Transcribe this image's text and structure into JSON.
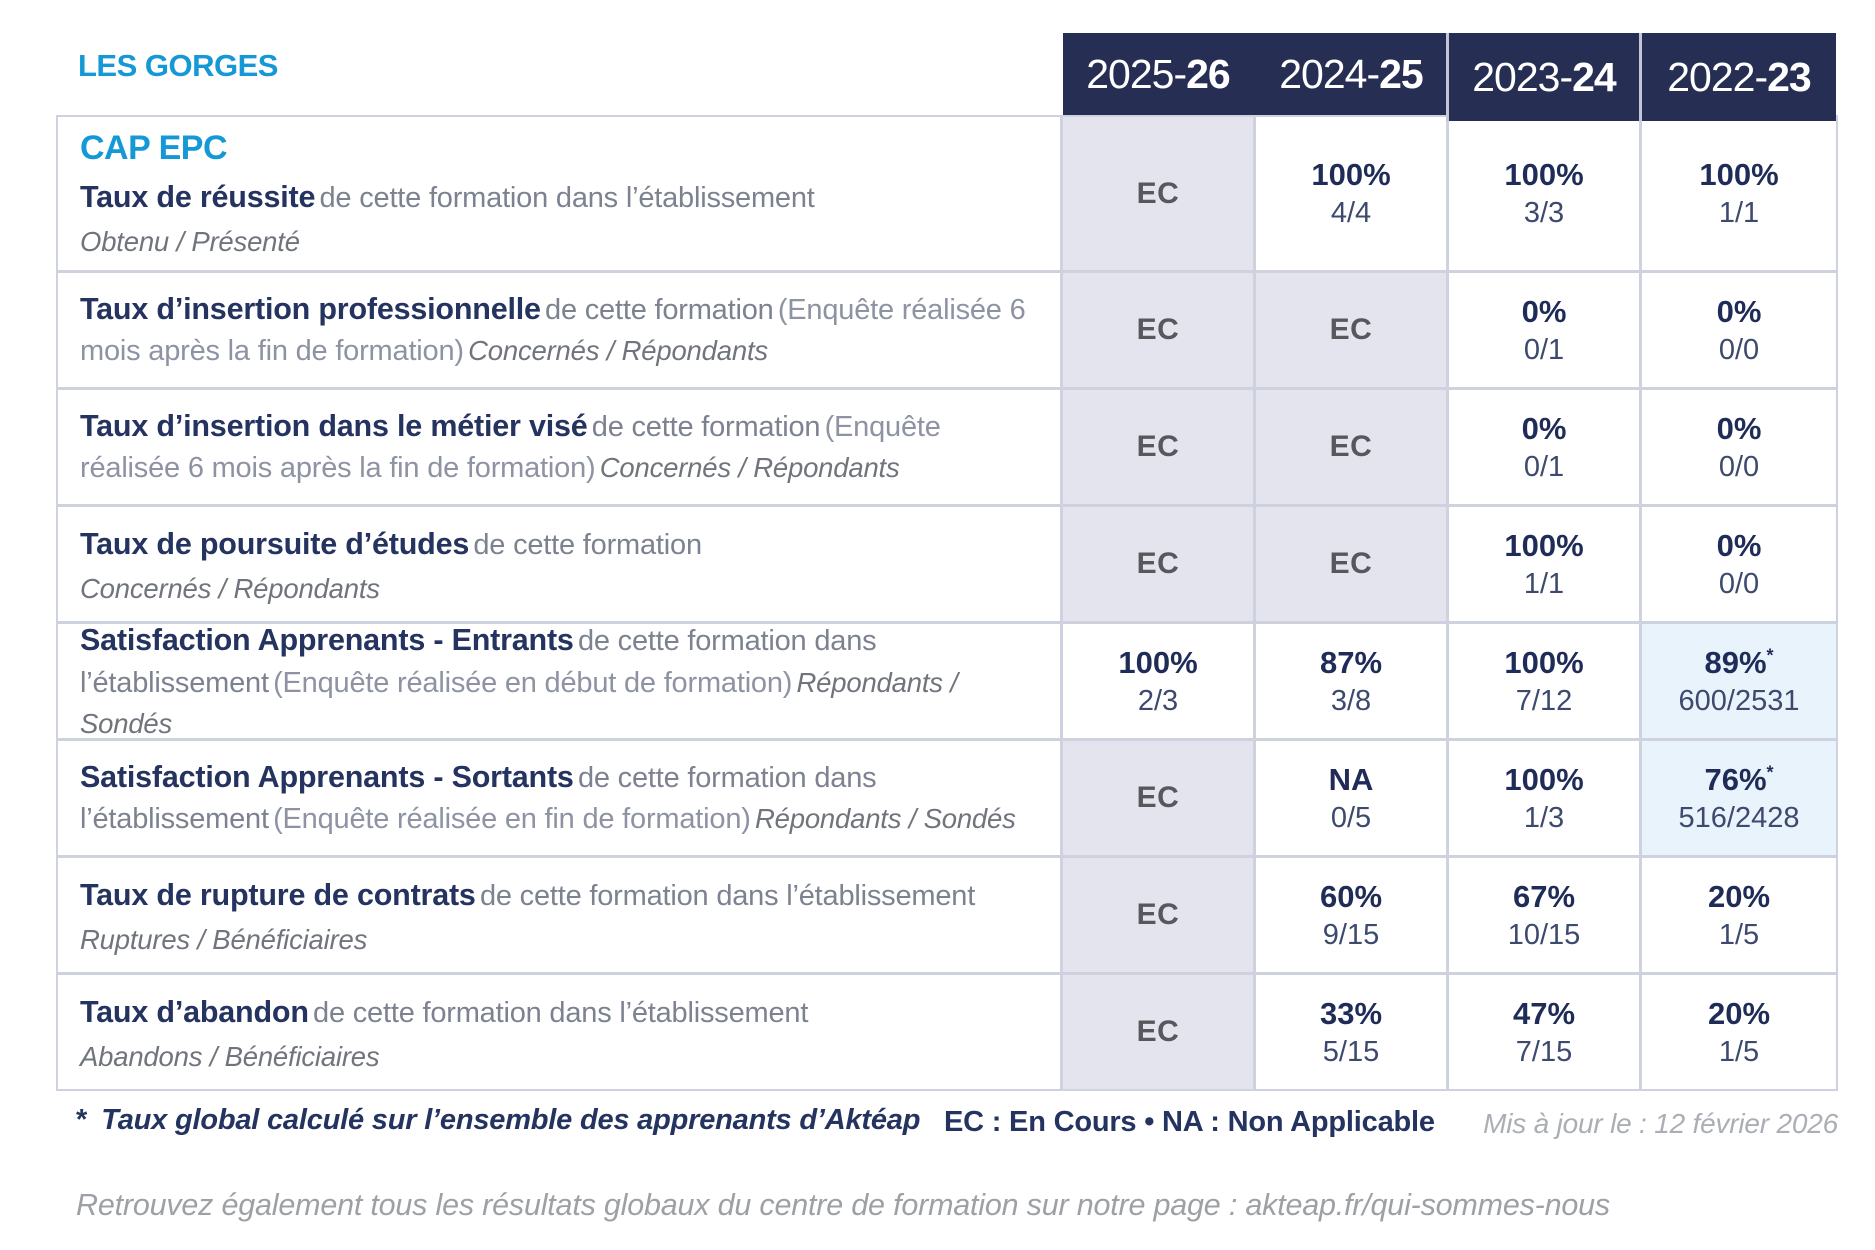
{
  "page": {
    "school_name": "LES GORGES",
    "program_title": "CAP EPC"
  },
  "colors": {
    "accent_blue": "#1598d6",
    "navy_text": "#24335f",
    "header_bg": "#272e54",
    "ec_cell_bg": "#e4e4ee",
    "star_cell_bg": "#e9f3fb",
    "grid_line": "#ced1de",
    "gray_text": "#7c8290",
    "footer_gray": "#9da0a5"
  },
  "header": {
    "years": [
      {
        "pre": "2025-",
        "suf": "26"
      },
      {
        "pre": "2024-",
        "suf": "25"
      },
      {
        "pre": "2023-",
        "suf": "24"
      },
      {
        "pre": "2022-",
        "suf": "23"
      }
    ]
  },
  "rows": [
    {
      "title": "Taux de réussite",
      "desc": "de cette formation dans l’établissement",
      "paren": "",
      "tail": "Obtenu / Présenté",
      "cells": [
        {
          "type": "ec",
          "label": "EC"
        },
        {
          "type": "val",
          "pct": "100%",
          "frac": "4/4"
        },
        {
          "type": "val",
          "pct": "100%",
          "frac": "3/3"
        },
        {
          "type": "val",
          "pct": "100%",
          "frac": "1/1"
        }
      ]
    },
    {
      "title": "Taux d’insertion professionnelle",
      "desc": "de cette formation",
      "paren": "(Enquête réalisée 6 mois après la fin de formation)",
      "tail": "Concernés / Répondants",
      "cells": [
        {
          "type": "ec",
          "label": "EC"
        },
        {
          "type": "ec",
          "label": "EC"
        },
        {
          "type": "val",
          "pct": "0%",
          "frac": "0/1"
        },
        {
          "type": "val",
          "pct": "0%",
          "frac": "0/0"
        }
      ]
    },
    {
      "title": "Taux d’insertion dans le métier visé",
      "desc": "de cette formation",
      "paren": "(Enquête réalisée 6 mois après la fin de formation)",
      "tail": "Concernés / Répondants",
      "cells": [
        {
          "type": "ec",
          "label": "EC"
        },
        {
          "type": "ec",
          "label": "EC"
        },
        {
          "type": "val",
          "pct": "0%",
          "frac": "0/1"
        },
        {
          "type": "val",
          "pct": "0%",
          "frac": "0/0"
        }
      ]
    },
    {
      "title": "Taux de poursuite d’études",
      "desc": "de cette formation",
      "paren": "",
      "tail": "Concernés / Répondants",
      "cells": [
        {
          "type": "ec",
          "label": "EC"
        },
        {
          "type": "ec",
          "label": "EC"
        },
        {
          "type": "val",
          "pct": "100%",
          "frac": "1/1"
        },
        {
          "type": "val",
          "pct": "0%",
          "frac": "0/0"
        }
      ]
    },
    {
      "title": "Satisfaction Apprenants - Entrants",
      "desc": "de cette formation dans l’établissement",
      "paren": "(Enquête réalisée en début de formation)",
      "tail": "Répondants / Sondés",
      "cells": [
        {
          "type": "val",
          "pct": "100%",
          "frac": "2/3"
        },
        {
          "type": "val",
          "pct": "87%",
          "frac": "3/8"
        },
        {
          "type": "val",
          "pct": "100%",
          "frac": "7/12"
        },
        {
          "type": "star",
          "pct": "89%",
          "sup": "*",
          "frac": "600/2531"
        }
      ]
    },
    {
      "title": "Satisfaction Apprenants - Sortants",
      "desc": "de cette formation dans l’établissement",
      "paren": "(Enquête réalisée en fin de formation)",
      "tail": "Répondants / Sondés",
      "cells": [
        {
          "type": "ec",
          "label": "EC"
        },
        {
          "type": "val",
          "pct": "NA",
          "frac": "0/5"
        },
        {
          "type": "val",
          "pct": "100%",
          "frac": "1/3"
        },
        {
          "type": "star",
          "pct": "76%",
          "sup": "*",
          "frac": "516/2428"
        }
      ]
    },
    {
      "title": "Taux de rupture de contrats",
      "desc": "de cette formation dans l’établissement",
      "paren": "",
      "tail": "Ruptures / Bénéficiaires",
      "cells": [
        {
          "type": "ec",
          "label": "EC"
        },
        {
          "type": "val",
          "pct": "60%",
          "frac": "9/15"
        },
        {
          "type": "val",
          "pct": "67%",
          "frac": "10/15"
        },
        {
          "type": "val",
          "pct": "20%",
          "frac": "1/5"
        }
      ]
    },
    {
      "title": "Taux d’abandon",
      "desc": "de cette formation dans l’établissement",
      "paren": "",
      "tail": "Abandons / Bénéficiaires",
      "cells": [
        {
          "type": "ec",
          "label": "EC"
        },
        {
          "type": "val",
          "pct": "33%",
          "frac": "5/15"
        },
        {
          "type": "val",
          "pct": "47%",
          "frac": "7/15"
        },
        {
          "type": "val",
          "pct": "20%",
          "frac": "1/5"
        }
      ]
    }
  ],
  "footer": {
    "note_star": "*",
    "note_text": "Taux global calculé sur l’ensemble des apprenants d’Aktéap",
    "legend": "EC : En Cours  •  NA : Non Applicable",
    "updated": "Mis à jour le : 12 février 2026",
    "bottom_line": "Retrouvez également tous les résultats globaux du centre de formation sur notre page : akteap.fr/qui-sommes-nous"
  }
}
